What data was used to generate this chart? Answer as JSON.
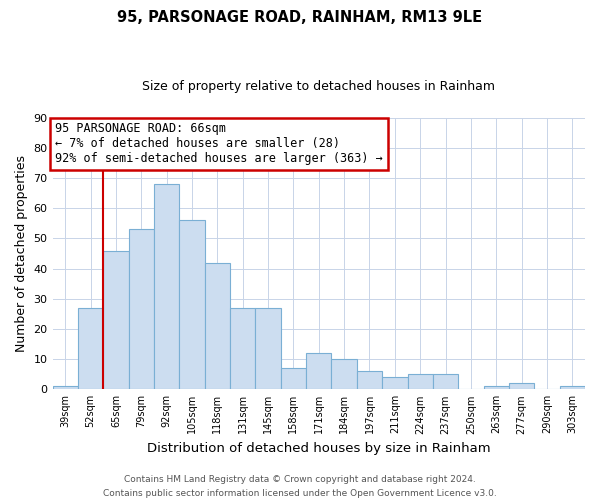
{
  "title": "95, PARSONAGE ROAD, RAINHAM, RM13 9LE",
  "subtitle": "Size of property relative to detached houses in Rainham",
  "xlabel": "Distribution of detached houses by size in Rainham",
  "ylabel": "Number of detached properties",
  "categories": [
    "39sqm",
    "52sqm",
    "65sqm",
    "79sqm",
    "92sqm",
    "105sqm",
    "118sqm",
    "131sqm",
    "145sqm",
    "158sqm",
    "171sqm",
    "184sqm",
    "197sqm",
    "211sqm",
    "224sqm",
    "237sqm",
    "250sqm",
    "263sqm",
    "277sqm",
    "290sqm",
    "303sqm"
  ],
  "values": [
    1,
    27,
    46,
    53,
    68,
    56,
    42,
    27,
    27,
    7,
    12,
    10,
    6,
    4,
    5,
    5,
    0,
    1,
    2,
    0,
    1
  ],
  "bar_color": "#ccddf0",
  "bar_edge_color": "#7aafd4",
  "vline_index": 2,
  "vline_color": "#cc0000",
  "ylim": [
    0,
    90
  ],
  "yticks": [
    0,
    10,
    20,
    30,
    40,
    50,
    60,
    70,
    80,
    90
  ],
  "annotation_line1": "95 PARSONAGE ROAD: 66sqm",
  "annotation_line2": "← 7% of detached houses are smaller (28)",
  "annotation_line3": "92% of semi-detached houses are larger (363) →",
  "annotation_box_color": "#ffffff",
  "annotation_box_edge": "#cc0000",
  "footer_line1": "Contains HM Land Registry data © Crown copyright and database right 2024.",
  "footer_line2": "Contains public sector information licensed under the Open Government Licence v3.0.",
  "background_color": "#ffffff",
  "grid_color": "#c8d4e8",
  "title_fontsize": 10.5,
  "subtitle_fontsize": 9,
  "ylabel_fontsize": 9,
  "xlabel_fontsize": 9.5
}
